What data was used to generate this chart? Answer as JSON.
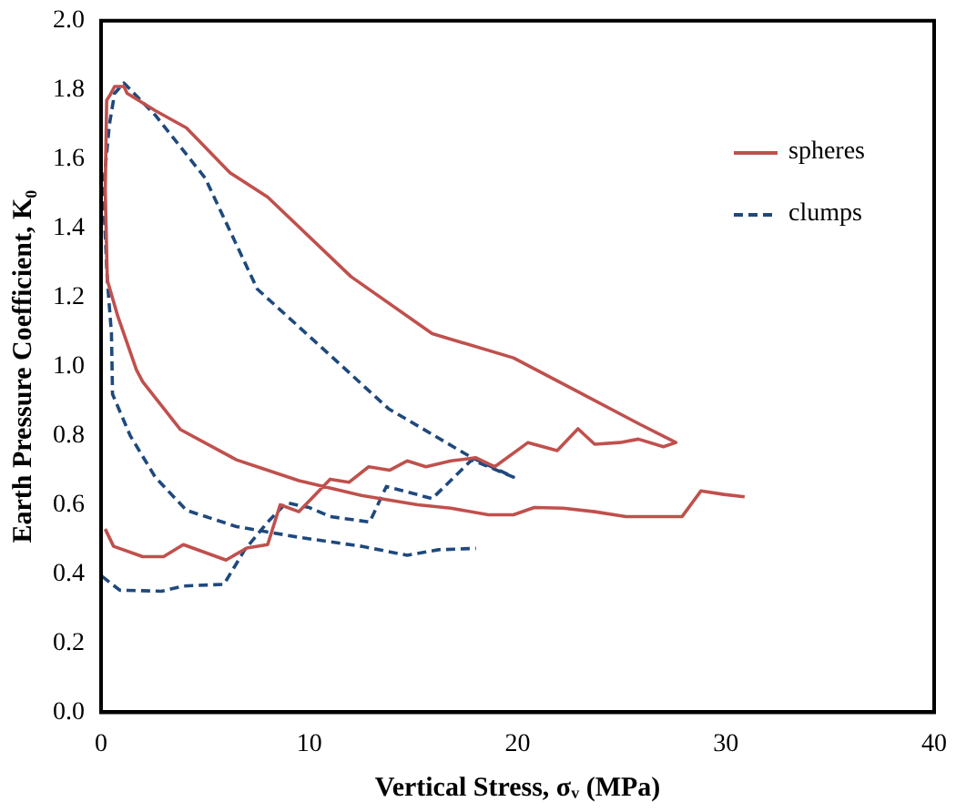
{
  "chart_data": {
    "type": "line",
    "xlabel": "Vertical Stress, σᵥ (MPa)",
    "ylabel": "Earth Pressure Coefficient, K₀",
    "xlim": [
      0,
      40
    ],
    "xticks": [
      0,
      10,
      20,
      30,
      40
    ],
    "ylim": [
      0,
      2
    ],
    "yticks": [
      {
        "value": 0,
        "label": "0.0"
      },
      {
        "value": 0.2,
        "label": "0.2"
      },
      {
        "value": 0.4,
        "label": "0.4"
      },
      {
        "value": 0.6,
        "label": "0.6"
      },
      {
        "value": 0.8,
        "label": "0.8"
      },
      {
        "value": 1,
        "label": "1.0"
      },
      {
        "value": 1.2,
        "label": "1.2"
      },
      {
        "value": 1.4,
        "label": "1.4"
      },
      {
        "value": 1.6,
        "label": "1.6"
      },
      {
        "value": 1.8,
        "label": "1.8"
      },
      {
        "value": 2,
        "label": "2.0"
      }
    ],
    "grid": false,
    "legend": "top right",
    "marker": "none",
    "series": [
      {
        "name": "spheres",
        "color": "#c0504d",
        "line_style": "solid",
        "x": [
          0.2,
          0.6,
          2.0,
          3.0,
          3.95,
          6.0,
          7.0,
          8.0,
          8.6,
          9.5,
          11.0,
          11.9,
          12.85,
          13.85,
          14.7,
          15.6,
          16.8,
          18.0,
          18.9,
          20.5,
          21.9,
          22.9,
          23.7,
          24.9,
          25.8,
          27.0,
          27.6,
          25.8,
          22.8,
          19.8,
          15.9,
          12.0,
          8.0,
          6.2,
          4.1,
          2.6,
          1.25,
          1.1,
          0.65,
          0.45,
          0.27,
          0.2,
          0.3,
          0.8,
          1.7,
          2.0,
          3.8,
          6.5,
          9.5,
          12.5,
          15.2,
          16.8,
          18.6,
          19.8,
          20.8,
          22.2,
          23.7,
          25.2,
          27.9,
          28.8,
          29.9,
          30.9
        ],
        "values": [
          0.53,
          0.48,
          0.45,
          0.45,
          0.485,
          0.44,
          0.475,
          0.485,
          0.6,
          0.58,
          0.674,
          0.665,
          0.71,
          0.7,
          0.727,
          0.71,
          0.727,
          0.736,
          0.71,
          0.78,
          0.757,
          0.82,
          0.775,
          0.78,
          0.79,
          0.768,
          0.78,
          0.835,
          0.93,
          1.025,
          1.095,
          1.26,
          1.49,
          1.56,
          1.69,
          1.74,
          1.79,
          1.81,
          1.81,
          1.787,
          1.77,
          1.51,
          1.25,
          1.146,
          0.99,
          0.956,
          0.818,
          0.73,
          0.67,
          0.627,
          0.6,
          0.59,
          0.571,
          0.571,
          0.592,
          0.59,
          0.58,
          0.566,
          0.566,
          0.64,
          0.63,
          0.623
        ]
      },
      {
        "name": "clumps",
        "color": "#1f497d",
        "line_style": "dashed",
        "x": [
          0.05,
          0.9,
          2.9,
          3.95,
          5.9,
          6.9,
          8.0,
          8.9,
          10.0,
          11.0,
          12.9,
          13.7,
          15.9,
          17.8,
          19.8,
          17.7,
          13.8,
          10.5,
          7.5,
          5.0,
          2.6,
          1.1,
          0.65,
          0.4,
          0.1,
          0.3,
          0.5,
          0.55,
          1.4,
          2.6,
          4.1,
          6.5,
          9.5,
          12.5,
          14.7,
          16.2,
          18.0
        ],
        "values": [
          0.393,
          0.353,
          0.35,
          0.365,
          0.37,
          0.47,
          0.55,
          0.606,
          0.592,
          0.566,
          0.55,
          0.653,
          0.618,
          0.73,
          0.68,
          0.74,
          0.878,
          1.06,
          1.224,
          1.545,
          1.727,
          1.82,
          1.79,
          1.7,
          1.51,
          1.25,
          1.095,
          0.92,
          0.8,
          0.68,
          0.584,
          0.537,
          0.506,
          0.48,
          0.454,
          0.47,
          0.474
        ]
      }
    ]
  }
}
